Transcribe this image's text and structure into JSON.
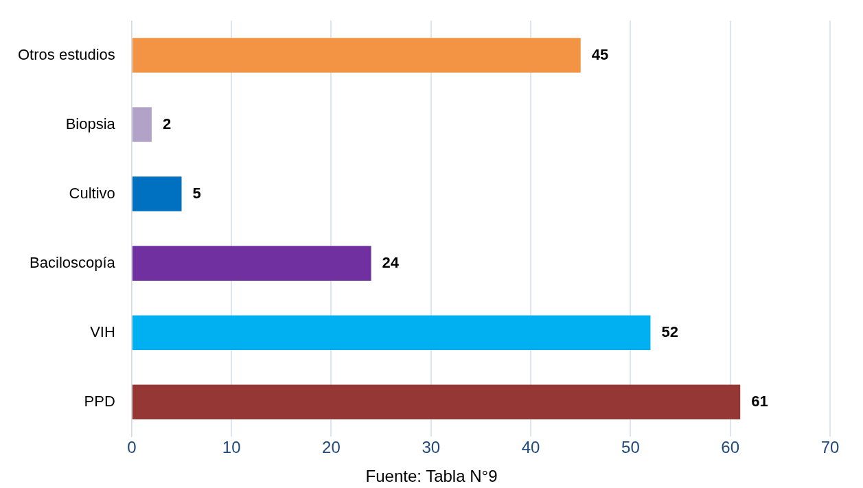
{
  "chart_data": {
    "type": "bar",
    "orientation": "horizontal",
    "categories": [
      "Otros estudios",
      "Biopsia",
      "Cultivo",
      "Baciloscopía",
      "VIH",
      "PPD"
    ],
    "values": [
      45,
      2,
      5,
      24,
      52,
      61
    ],
    "colors": [
      "#f39444",
      "#b3a2c7",
      "#0070c0",
      "#7030a0",
      "#00b0f0",
      "#953735"
    ],
    "xlim": [
      0,
      70
    ],
    "xticks": [
      0,
      10,
      20,
      30,
      40,
      50,
      60,
      70
    ],
    "grid": "x",
    "data_labels": true,
    "legend": false,
    "annotations": [
      "Fuente: Tabla N°9"
    ]
  }
}
